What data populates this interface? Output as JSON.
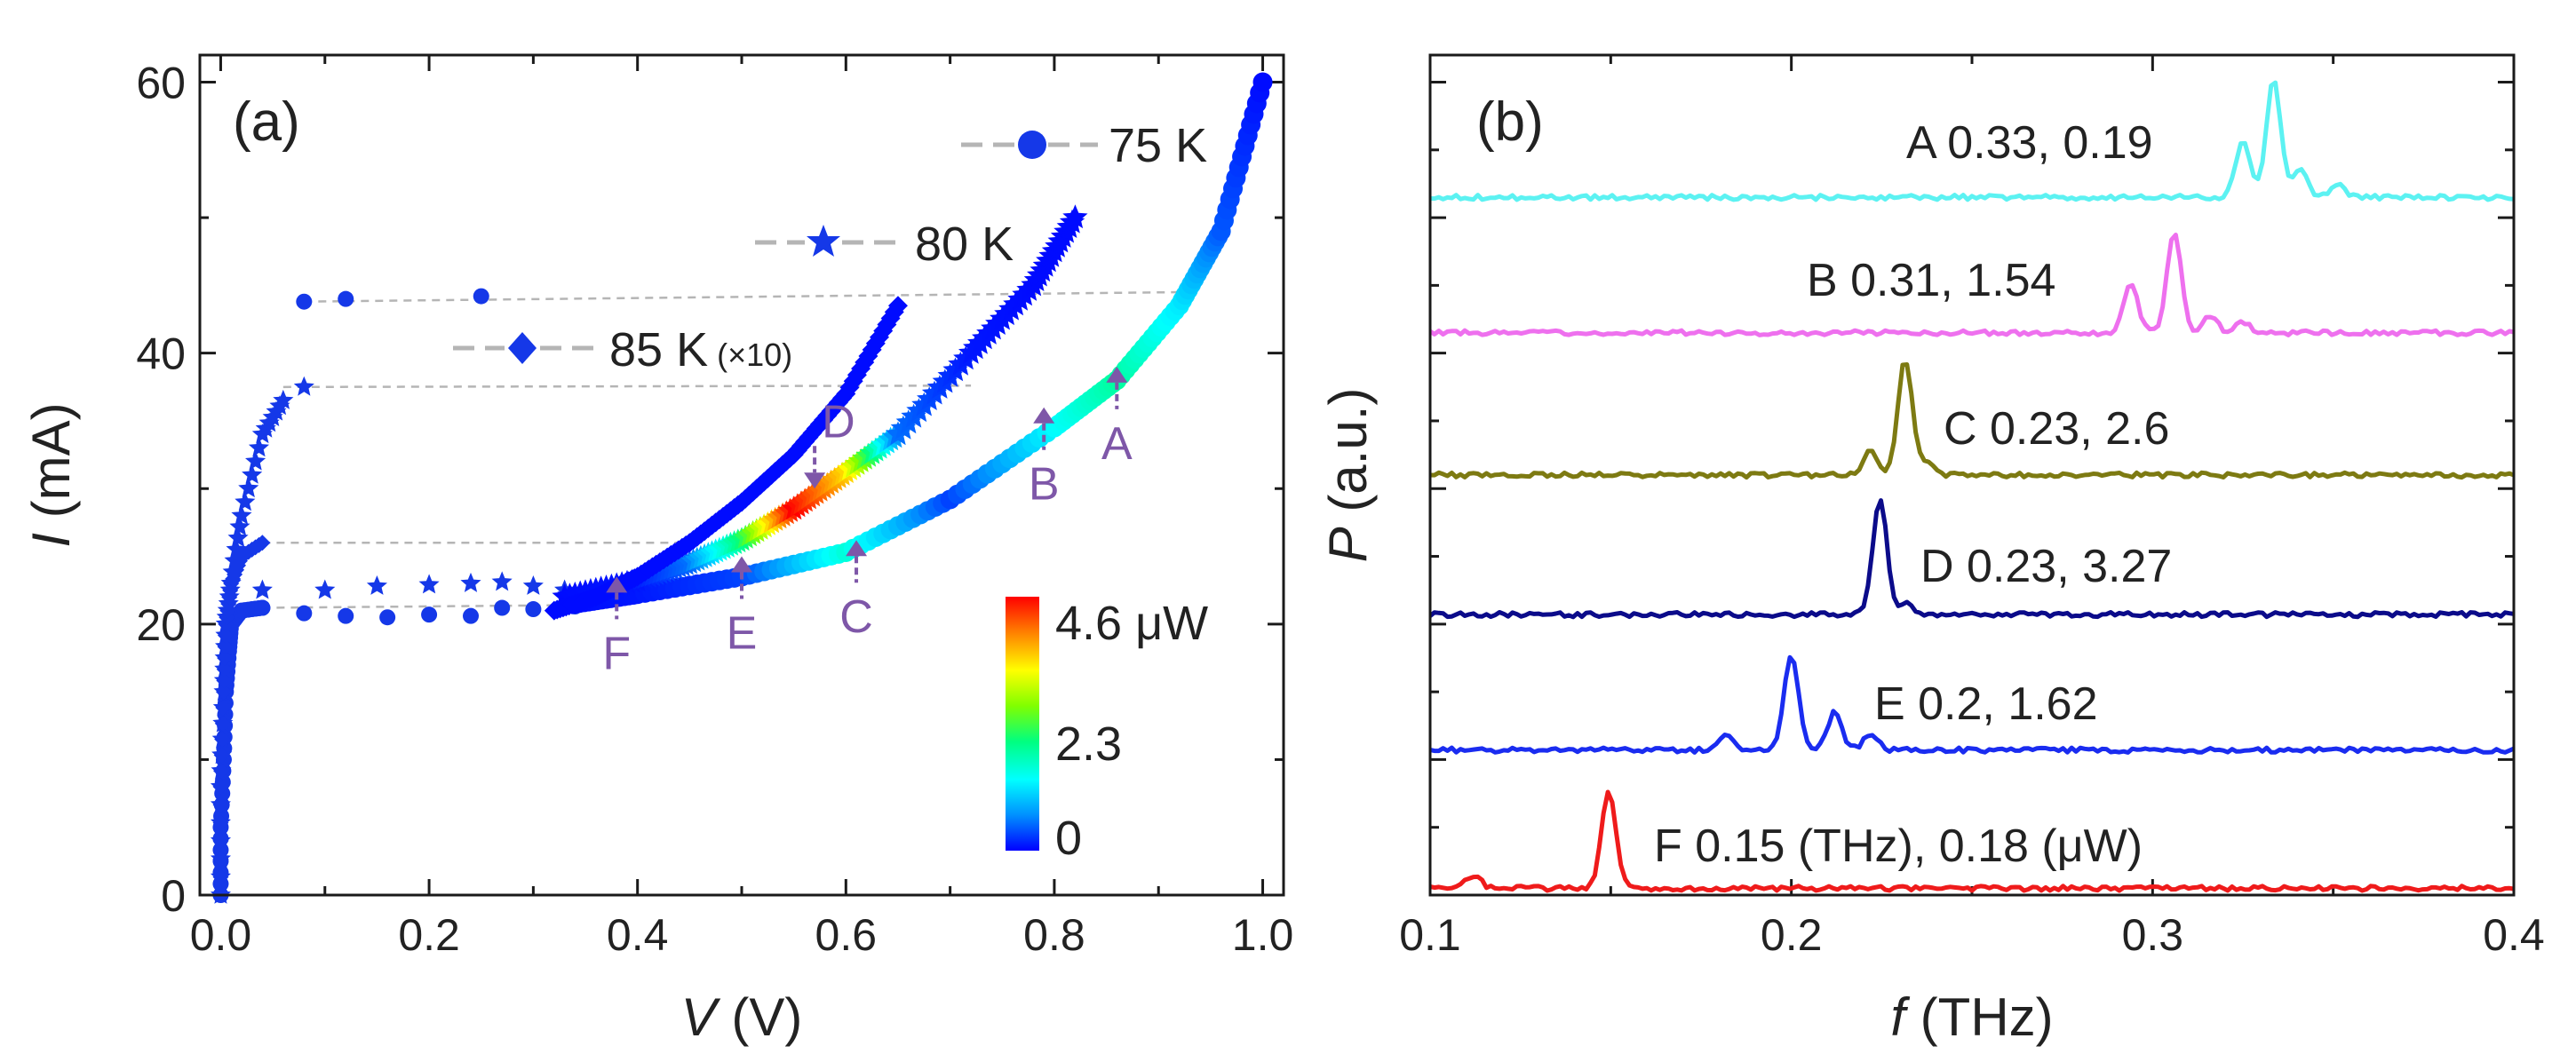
{
  "colors": {
    "marker": "#1538e8",
    "annotation": "#7e57a8",
    "guide": "#b5b5b5",
    "colormap": [
      "#0000ff",
      "#0090ff",
      "#00ffff",
      "#00ff80",
      "#80ff00",
      "#ffff00",
      "#ff8000",
      "#ff0000"
    ]
  },
  "chart_data": [
    {
      "panel_label": "(a)",
      "type": "scatter",
      "xlabel_var": "V",
      "xlabel_unit": " (V)",
      "ylabel_var": "I",
      "ylabel_unit": " (mA)",
      "xlim": [
        -0.02,
        1.02
      ],
      "ylim": [
        0,
        62
      ],
      "xticks": [
        0.0,
        0.2,
        0.4,
        0.6,
        0.8,
        1.0
      ],
      "xtick_labels": [
        "0.0",
        "0.2",
        "0.4",
        "0.6",
        "0.8",
        "1.0"
      ],
      "yticks": [
        0,
        20,
        40,
        60
      ],
      "ytick_labels": [
        "0",
        "20",
        "40",
        "60"
      ],
      "series": [
        {
          "name": "75 K",
          "marker": "circle",
          "legend_text": "75 K",
          "legend_suffix": "",
          "vertical_branch": [
            [
              0.0,
              0
            ],
            [
              0.0,
              5
            ],
            [
              0.003,
              10
            ],
            [
              0.005,
              15
            ],
            [
              0.008,
              18
            ],
            [
              0.01,
              20
            ],
            [
              0.02,
              21
            ],
            [
              0.04,
              21.2
            ]
          ],
          "jump_points": [
            [
              0.08,
              43.8
            ],
            [
              0.12,
              44
            ],
            [
              0.25,
              44.2
            ]
          ],
          "low_branch": [
            [
              0.04,
              21.2
            ],
            [
              0.08,
              20.8
            ],
            [
              0.12,
              20.6
            ],
            [
              0.16,
              20.5
            ],
            [
              0.2,
              20.7
            ],
            [
              0.24,
              20.6
            ],
            [
              0.27,
              21.2
            ],
            [
              0.3,
              21.1
            ],
            [
              0.34,
              21.3
            ]
          ],
          "return_curve": [
            [
              0.34,
              21.5
            ],
            [
              0.4,
              22.2
            ],
            [
              0.5,
              23.5
            ],
            [
              0.6,
              25.3
            ],
            [
              0.7,
              29.2
            ],
            [
              0.8,
              34.5
            ],
            [
              0.86,
              38.0
            ],
            [
              0.92,
              43.5
            ],
            [
              0.96,
              49.0
            ],
            [
              1.0,
              60.0
            ]
          ],
          "power_uW": [
            0.05,
            0.1,
            0.3,
            1.5,
            0.3,
            1.3,
            1.8,
            1.2,
            0.4,
            0.05
          ]
        },
        {
          "name": "80 K",
          "marker": "star",
          "legend_text": "80 K",
          "legend_suffix": "",
          "vertical_branch": [
            [
              0.0,
              0
            ],
            [
              0.0,
              8
            ],
            [
              0.003,
              15
            ],
            [
              0.005,
              20
            ],
            [
              0.01,
              23
            ],
            [
              0.02,
              28
            ],
            [
              0.04,
              34
            ],
            [
              0.06,
              36.5
            ]
          ],
          "jump_points": [
            [
              0.08,
              37.5
            ]
          ],
          "low_branch": [
            [
              0.04,
              22.5
            ],
            [
              0.1,
              22.5
            ],
            [
              0.15,
              22.8
            ],
            [
              0.2,
              22.9
            ],
            [
              0.24,
              23.0
            ],
            [
              0.27,
              23.1
            ],
            [
              0.3,
              22.8
            ],
            [
              0.33,
              22.5
            ]
          ],
          "return_curve": [
            [
              0.33,
              22.0
            ],
            [
              0.4,
              23.2
            ],
            [
              0.45,
              24.5
            ],
            [
              0.5,
              26.2
            ],
            [
              0.55,
              28.5
            ],
            [
              0.6,
              31.2
            ],
            [
              0.65,
              34.0
            ],
            [
              0.72,
              40.0
            ],
            [
              0.78,
              45.0
            ],
            [
              0.82,
              50.0
            ]
          ],
          "power_uW": [
            0.05,
            0.1,
            0.5,
            2.0,
            4.6,
            3.5,
            0.5,
            0.1,
            0.05,
            0.05
          ]
        },
        {
          "name": "85 K",
          "marker": "diamond",
          "legend_text": "85 K",
          "legend_suffix": "(×10)",
          "vertical_branch": [
            [
              0.0,
              0
            ],
            [
              0.0,
              8
            ],
            [
              0.003,
              15
            ],
            [
              0.005,
              20
            ],
            [
              0.01,
              23
            ],
            [
              0.02,
              25
            ],
            [
              0.04,
              26
            ]
          ],
          "jump_points": [],
          "low_branch": [],
          "return_curve": [
            [
              0.32,
              21.0
            ],
            [
              0.36,
              22.0
            ],
            [
              0.4,
              23.5
            ],
            [
              0.45,
              26.0
            ],
            [
              0.5,
              29.0
            ],
            [
              0.55,
              32.5
            ],
            [
              0.6,
              37.0
            ],
            [
              0.65,
              43.5
            ]
          ],
          "power_uW": [
            0.05,
            0.05,
            0.05,
            0.05,
            0.05,
            0.05,
            0.05,
            0.05
          ]
        }
      ],
      "guide_lines": [
        {
          "from": [
            0.08,
            43.8
          ],
          "to": [
            0.92,
            44.5
          ]
        },
        {
          "from": [
            0.06,
            37.5
          ],
          "to": [
            0.72,
            37.6
          ]
        },
        {
          "from": [
            0.04,
            26
          ],
          "to": [
            0.45,
            26.0
          ]
        },
        {
          "from": [
            0.04,
            21.2
          ],
          "to": [
            0.34,
            21.4
          ]
        }
      ],
      "annotations": [
        {
          "label": "A",
          "x": 0.86,
          "y_tip": 39.0,
          "direction": "up"
        },
        {
          "label": "B",
          "x": 0.79,
          "y_tip": 36.0,
          "direction": "up"
        },
        {
          "label": "C",
          "x": 0.61,
          "y_tip": 26.2,
          "direction": "up"
        },
        {
          "label": "D",
          "x": 0.57,
          "y_tip": 30.0,
          "direction": "down"
        },
        {
          "label": "E",
          "x": 0.5,
          "y_tip": 25.0,
          "direction": "up"
        },
        {
          "label": "F",
          "x": 0.38,
          "y_tip": 23.5,
          "direction": "up"
        }
      ],
      "colorbar": {
        "tick_labels": [
          "4.6 μW",
          "2.3",
          "0"
        ],
        "tick_values": [
          4.6,
          2.3,
          0
        ],
        "min": 0,
        "max": 4.6
      }
    },
    {
      "panel_label": "(b)",
      "type": "line",
      "xlabel_var": "f",
      "xlabel_unit": " (THz)",
      "ylabel_var": "P",
      "ylabel_unit": " (a.u.)",
      "xlim": [
        0.1,
        0.4
      ],
      "ylim": [
        0,
        6.2
      ],
      "xticks": [
        0.1,
        0.2,
        0.3,
        0.4
      ],
      "xtick_labels": [
        "0.1",
        "0.2",
        "0.3",
        "0.4"
      ],
      "yticks": [
        0,
        0.5,
        1,
        1.5,
        2,
        2.5,
        3,
        3.5,
        4,
        4.5,
        5,
        5.5,
        6
      ],
      "series": [
        {
          "name": "A",
          "label": "A 0.33, 0.19",
          "color": "#5cf2f2",
          "baseline": 5.15,
          "peaks": [
            {
              "f": 0.3335,
              "h": 0.88
            },
            {
              "f": 0.325,
              "h": 0.42
            },
            {
              "f": 0.341,
              "h": 0.2
            },
            {
              "f": 0.351,
              "h": 0.1
            }
          ]
        },
        {
          "name": "B",
          "label": "B 0.31, 1.54",
          "color": "#ee70ee",
          "baseline": 4.15,
          "peaks": [
            {
              "f": 0.306,
              "h": 0.75
            },
            {
              "f": 0.294,
              "h": 0.35
            },
            {
              "f": 0.316,
              "h": 0.12
            },
            {
              "f": 0.325,
              "h": 0.08
            }
          ]
        },
        {
          "name": "C",
          "label": "C 0.23, 2.6",
          "color": "#7d7a12",
          "baseline": 3.1,
          "peaks": [
            {
              "f": 0.2315,
              "h": 0.85
            },
            {
              "f": 0.222,
              "h": 0.18
            },
            {
              "f": 0.2375,
              "h": 0.1
            }
          ]
        },
        {
          "name": "D",
          "label": "D 0.23, 3.27",
          "color": "#0b0b8a",
          "baseline": 2.07,
          "peaks": [
            {
              "f": 0.2245,
              "h": 0.85
            },
            {
              "f": 0.232,
              "h": 0.08
            }
          ]
        },
        {
          "name": "E",
          "label": "E 0.2, 1.62",
          "color": "#1a2cf0",
          "baseline": 1.07,
          "peaks": [
            {
              "f": 0.2,
              "h": 0.7
            },
            {
              "f": 0.212,
              "h": 0.28
            },
            {
              "f": 0.182,
              "h": 0.1
            },
            {
              "f": 0.222,
              "h": 0.12
            }
          ]
        },
        {
          "name": "F",
          "label": "F 0.15 (THz), 0.18 (μW)",
          "color": "#ef1b1b",
          "baseline": 0.05,
          "peaks": [
            {
              "f": 0.1495,
              "h": 0.72
            },
            {
              "f": 0.112,
              "h": 0.1
            }
          ]
        }
      ]
    }
  ]
}
